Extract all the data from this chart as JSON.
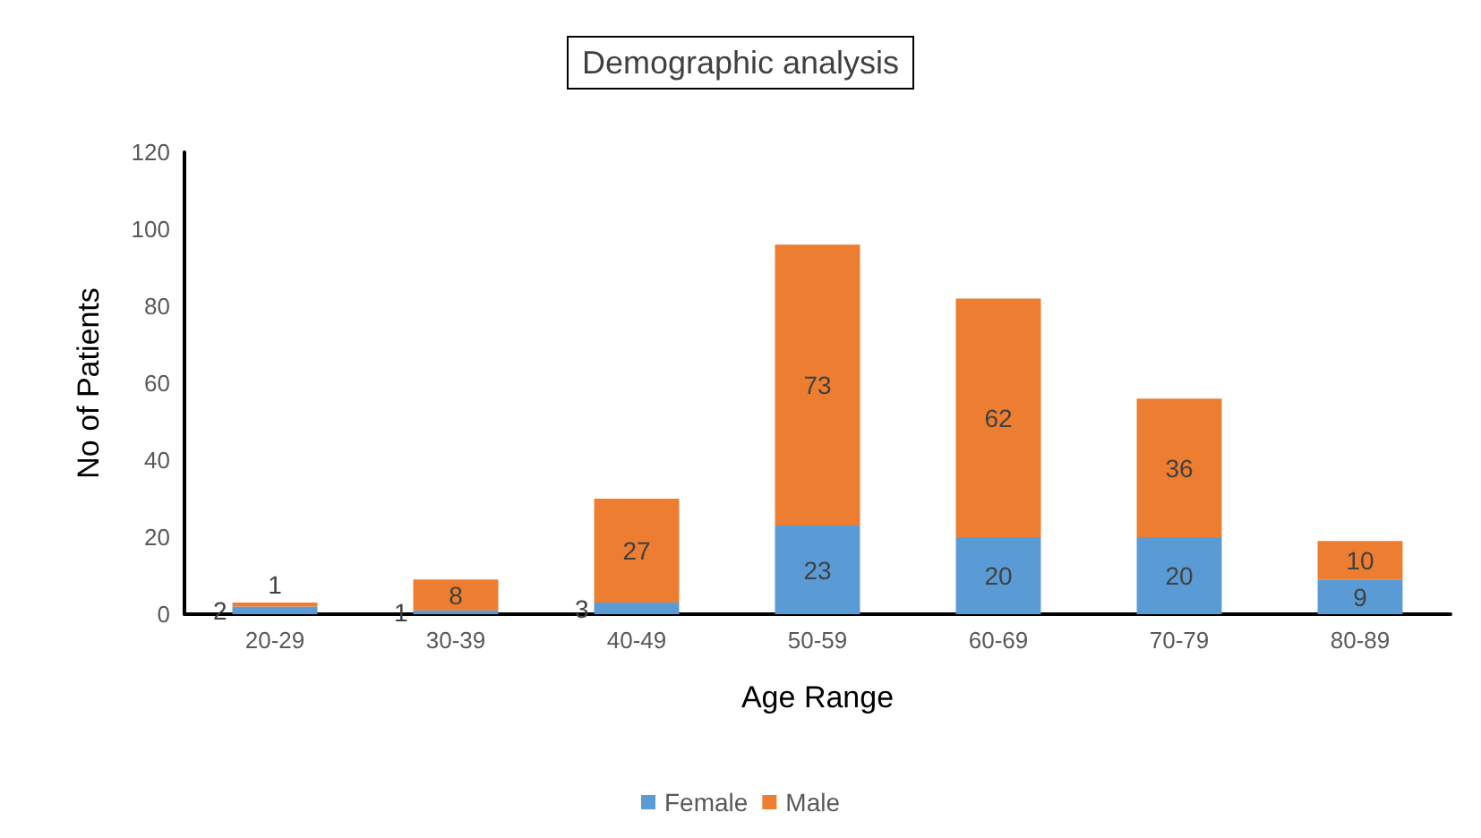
{
  "chart_data": {
    "type": "bar",
    "title": "Demographic analysis",
    "xlabel": "Age Range",
    "ylabel": "No of Patients",
    "categories": [
      "20-29",
      "30-39",
      "40-49",
      "50-59",
      "60-69",
      "70-79",
      "80-89"
    ],
    "series": [
      {
        "name": "Female",
        "color": "#5b9bd5",
        "values": [
          2,
          1,
          3,
          23,
          20,
          20,
          9
        ]
      },
      {
        "name": "Male",
        "color": "#ed7d31",
        "values": [
          1,
          8,
          27,
          73,
          62,
          36,
          10
        ]
      }
    ],
    "stacked": true,
    "data_labels": true,
    "ylim": [
      0,
      120
    ],
    "yticks": [
      0,
      20,
      40,
      60,
      80,
      100,
      120
    ],
    "grid": false,
    "legend": "bottom"
  }
}
